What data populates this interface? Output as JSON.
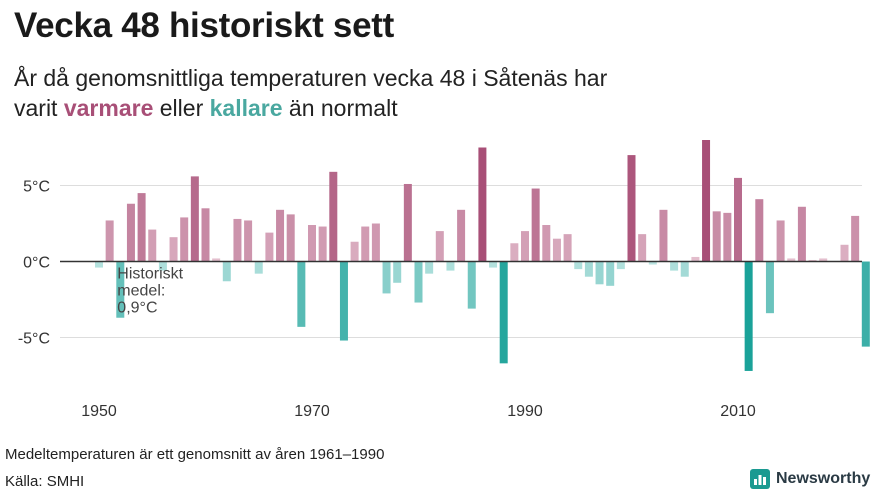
{
  "header": {
    "title": "Vecka 48 historiskt sett",
    "subtitle_line1": "År då genomsnittliga temperaturen vecka 48 i Såtenäs har",
    "subtitle_prefix": "varit",
    "subtitle_warm": "varmare",
    "subtitle_mid": "eller",
    "subtitle_cold": "kallare",
    "subtitle_suffix": "än normalt"
  },
  "footer": {
    "note": "Medeltemperaturen är ett genomsnitt av åren 1961–1990",
    "source": "Källa: SMHI",
    "brand": "Newsworthy",
    "brand_icon": "bar-chart-logo-icon"
  },
  "colors": {
    "warm_dark": "#a84f77",
    "warm_light": "#e6c3d1",
    "cold_dark": "#149f96",
    "cold_light": "#bfe6e3",
    "gridline": "#dddddd",
    "zero_line": "#333333"
  },
  "chart_data": {
    "type": "bar",
    "ylim": [
      -8,
      9
    ],
    "xlim": [
      1946,
      2024
    ],
    "yticks": [
      5,
      0,
      -5
    ],
    "ytick_labels": [
      "5°C",
      "0°C",
      "-5°C"
    ],
    "xticks": [
      1950,
      1970,
      1990,
      2010
    ],
    "xtick_labels": [
      "1950",
      "1970",
      "1990",
      "2010"
    ],
    "grid": true,
    "annotation": {
      "lines": [
        "Historiskt",
        "medel:",
        "0,9°C"
      ],
      "year": 1952,
      "value": -0.3
    },
    "x": [
      1950,
      1951,
      1952,
      1953,
      1954,
      1955,
      1956,
      1957,
      1958,
      1959,
      1960,
      1961,
      1962,
      1963,
      1964,
      1965,
      1966,
      1967,
      1968,
      1969,
      1970,
      1971,
      1972,
      1973,
      1974,
      1975,
      1976,
      1977,
      1978,
      1979,
      1980,
      1981,
      1982,
      1983,
      1984,
      1985,
      1986,
      1987,
      1988,
      1989,
      1990,
      1991,
      1992,
      1993,
      1994,
      1995,
      1996,
      1997,
      1998,
      1999,
      2000,
      2001,
      2002,
      2003,
      2004,
      2005,
      2006,
      2007,
      2008,
      2009,
      2010,
      2011,
      2012,
      2013,
      2014,
      2015,
      2016,
      2017,
      2018,
      2019,
      2020,
      2021,
      2022
    ],
    "values": [
      -0.4,
      2.7,
      -3.7,
      3.8,
      4.5,
      2.1,
      -0.6,
      1.6,
      2.9,
      5.6,
      3.5,
      0.2,
      -1.3,
      2.8,
      2.7,
      -0.8,
      1.9,
      3.4,
      3.1,
      -4.3,
      2.4,
      2.3,
      5.9,
      -5.2,
      1.3,
      2.3,
      2.5,
      -2.1,
      -1.4,
      5.1,
      -2.7,
      -0.8,
      2.0,
      -0.6,
      3.4,
      -3.1,
      7.5,
      -0.4,
      -6.7,
      1.2,
      2.0,
      4.8,
      2.4,
      1.5,
      1.8,
      -0.5,
      -1.0,
      -1.5,
      -1.6,
      -0.5,
      7.0,
      1.8,
      -0.2,
      3.4,
      -0.6,
      -1.0,
      0.3,
      8.2,
      3.3,
      3.2,
      5.5,
      -7.2,
      4.1,
      -3.4,
      2.7,
      0.2,
      3.6,
      0.1,
      0.2,
      0.0,
      1.1,
      3.0,
      -5.6
    ]
  }
}
